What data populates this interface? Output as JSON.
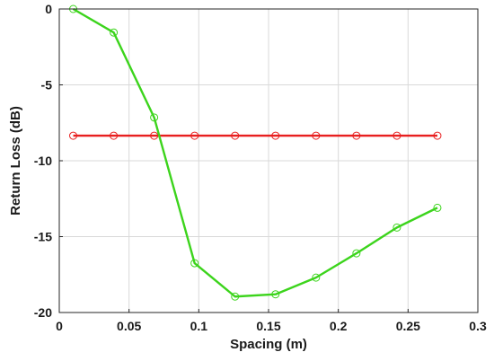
{
  "chart_data": {
    "type": "line",
    "title": "",
    "xlabel": "Spacing (m)",
    "ylabel": "Return Loss (dB)",
    "xlim": [
      0,
      0.3
    ],
    "ylim": [
      -20,
      0
    ],
    "x_ticks": [
      "0",
      "0.05",
      "0.1",
      "0.15",
      "0.2",
      "0.25",
      "0.3"
    ],
    "y_ticks": [
      "0",
      "-5",
      "-10",
      "-15",
      "-20"
    ],
    "grid": true,
    "legend": "none",
    "series": [
      {
        "color": "#e81f1f",
        "marker": "circle",
        "points": [
          {
            "x": 0.01,
            "y": -8.35
          },
          {
            "x": 0.039,
            "y": -8.35
          },
          {
            "x": 0.068,
            "y": -8.35
          },
          {
            "x": 0.097,
            "y": -8.35
          },
          {
            "x": 0.126,
            "y": -8.35
          },
          {
            "x": 0.155,
            "y": -8.35
          },
          {
            "x": 0.184,
            "y": -8.35
          },
          {
            "x": 0.213,
            "y": -8.35
          },
          {
            "x": 0.242,
            "y": -8.35
          },
          {
            "x": 0.271,
            "y": -8.35
          }
        ]
      },
      {
        "color": "#3cd41c",
        "marker": "circle",
        "points": [
          {
            "x": 0.01,
            "y": 0.0
          },
          {
            "x": 0.039,
            "y": -1.55
          },
          {
            "x": 0.068,
            "y": -7.15
          },
          {
            "x": 0.097,
            "y": -16.75
          },
          {
            "x": 0.126,
            "y": -18.95
          },
          {
            "x": 0.155,
            "y": -18.8
          },
          {
            "x": 0.184,
            "y": -17.7
          },
          {
            "x": 0.213,
            "y": -16.1
          },
          {
            "x": 0.242,
            "y": -14.4
          },
          {
            "x": 0.271,
            "y": -13.1
          }
        ]
      }
    ]
  }
}
